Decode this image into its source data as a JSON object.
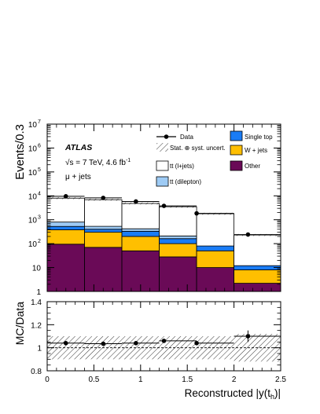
{
  "chart_data": [
    {
      "type": "bar",
      "stacked": true,
      "scale": "log",
      "ylabel": "Events/0.3",
      "xlim": [
        0,
        2.5
      ],
      "ylim": [
        1,
        10000000
      ],
      "bin_edges": [
        0,
        0.4,
        0.8,
        1.2,
        1.6,
        2.0,
        2.5
      ],
      "experiment": "ATLAS",
      "energy_label": "√s = 7 TeV, 4.6 fb",
      "lumi_superscript": "-1",
      "channel_label": "μ + jets",
      "y_tick_labels": [
        "1",
        "10",
        "10",
        "10",
        "10",
        "10",
        "10",
        "10"
      ],
      "y_tick_exponents": [
        "",
        "",
        "2",
        "3",
        "4",
        "5",
        "6",
        "7"
      ],
      "legend": {
        "data": "Data",
        "uncert": "Stat. ⊕ syst. uncert.",
        "ttljets": "tt (l+jets)",
        "ttdilep": "tt (dilepton)",
        "singletop": "Single top",
        "wjets": "W + jets",
        "other": "Other"
      },
      "series": [
        {
          "name": "Other",
          "color": "#6a0a57",
          "values": [
            95,
            70,
            50,
            28,
            10,
            2.2
          ]
        },
        {
          "name": "W + jets",
          "color": "#ffbf00",
          "values": [
            380,
            300,
            200,
            100,
            50,
            8
          ]
        },
        {
          "name": "Single top",
          "color": "#1a7cf5",
          "values": [
            525,
            400,
            330,
            162,
            80,
            12
          ]
        },
        {
          "name": "tt (dilepton)",
          "color": "#9ecbf5",
          "values": [
            800,
            530,
            420,
            210,
            80,
            12
          ]
        },
        {
          "name": "tt (l+jets)",
          "color": "#ffffff",
          "values": [
            8000,
            6900,
            4800,
            3500,
            1780,
            230
          ]
        }
      ],
      "data_points": [
        {
          "x": 0.2,
          "y": 9600
        },
        {
          "x": 0.6,
          "y": 8200
        },
        {
          "x": 0.95,
          "y": 5800
        },
        {
          "x": 1.25,
          "y": 3800
        },
        {
          "x": 1.6,
          "y": 1850
        },
        {
          "x": 2.15,
          "y": 240
        }
      ]
    },
    {
      "type": "scatter",
      "ylabel": "MC/Data",
      "xlabel": "Reconstructed |y(t",
      "xlabel_sub": "h",
      "xlabel_end": ")|",
      "xlim": [
        0,
        2.5
      ],
      "ylim": [
        0.8,
        1.4
      ],
      "x_tick_labels": [
        "0",
        "0.5",
        "1",
        "1.5",
        "2",
        "2.5"
      ],
      "y_tick_labels": [
        "0.8",
        "1",
        "1.2",
        "1.4"
      ],
      "uncert_band": [
        0.1,
        0.1,
        0.1,
        0.1,
        0.1,
        0.12
      ],
      "points": [
        {
          "x": 0.2,
          "y": 1.04
        },
        {
          "x": 0.6,
          "y": 1.035
        },
        {
          "x": 0.95,
          "y": 1.04
        },
        {
          "x": 1.25,
          "y": 1.06
        },
        {
          "x": 1.6,
          "y": 1.04
        },
        {
          "x": 2.15,
          "y": 1.1
        }
      ]
    }
  ]
}
